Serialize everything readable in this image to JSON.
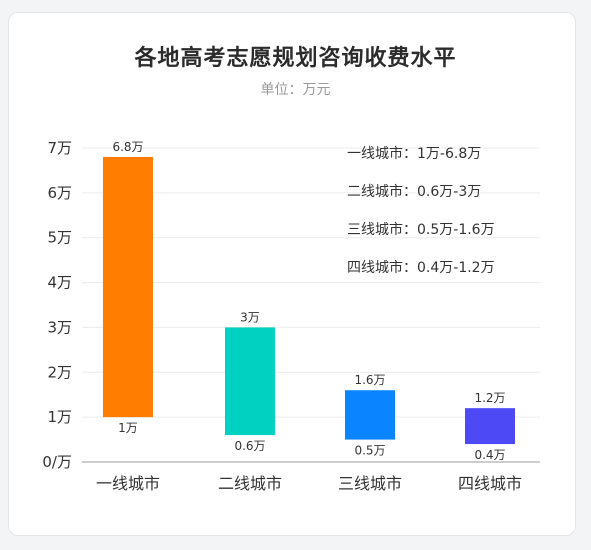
{
  "chart_data": {
    "type": "bar",
    "subtype": "floating-range",
    "title": "各地高考志愿规划咨询收费水平",
    "subtitle": "单位：万元",
    "categories": [
      "一线城市",
      "二线城市",
      "三线城市",
      "四线城市"
    ],
    "low": [
      1,
      0.6,
      0.5,
      0.4
    ],
    "high": [
      6.8,
      3,
      1.6,
      1.2
    ],
    "low_labels": [
      "1万",
      "0.6万",
      "0.5万",
      "0.4万"
    ],
    "high_labels": [
      "6.8万",
      "3万",
      "1.6万",
      "1.2万"
    ],
    "colors": [
      "#ff7d00",
      "#00d1c1",
      "#0a84ff",
      "#4c49f5"
    ],
    "y_ticks": [
      {
        "value": 0,
        "label": "0/万"
      },
      {
        "value": 1,
        "label": "1万"
      },
      {
        "value": 2,
        "label": "2万"
      },
      {
        "value": 3,
        "label": "3万"
      },
      {
        "value": 4,
        "label": "4万"
      },
      {
        "value": 5,
        "label": "5万"
      },
      {
        "value": 6,
        "label": "6万"
      },
      {
        "value": 7,
        "label": "7万"
      }
    ],
    "ylim": [
      0,
      7
    ],
    "grid": true,
    "legend_placement": "top-right",
    "annotations": [
      "一线城市：1万-6.8万",
      "二线城市：0.6万-3万",
      "三线城市：0.5万-1.6万",
      "四线城市：0.4万-1.2万"
    ]
  }
}
